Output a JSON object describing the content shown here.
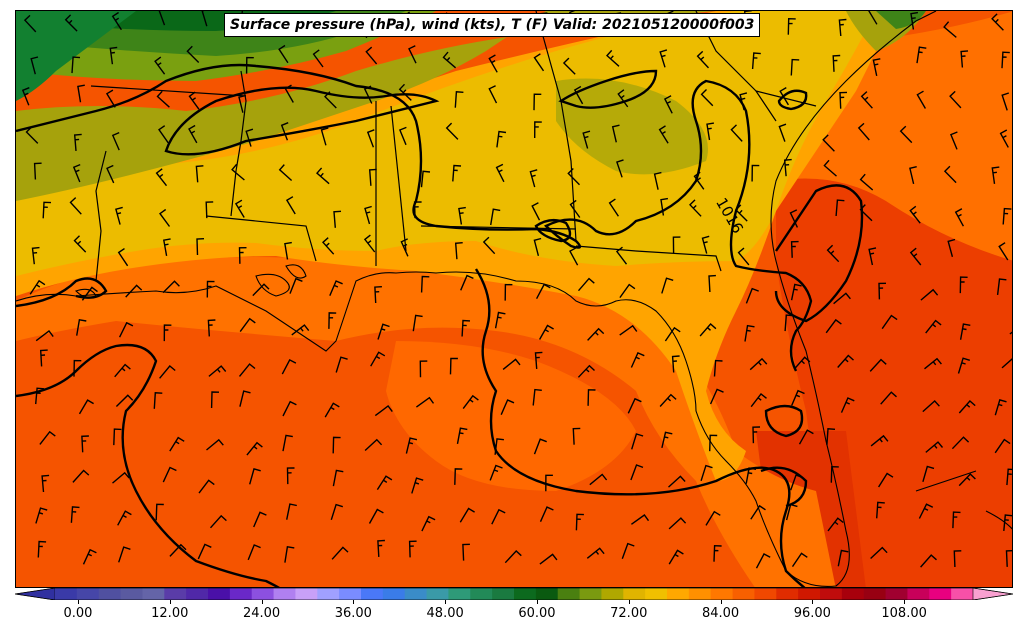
{
  "title": "Surface pressure (hPa), wind (kts), T (F) Valid: 202105120000f003",
  "contour_label": "1016",
  "colorbar": {
    "min": -6,
    "max": 120,
    "step": 3,
    "ticks": [
      "0.00",
      "12.00",
      "24.00",
      "36.00",
      "48.00",
      "60.00",
      "72.00",
      "84.00",
      "96.00",
      "108.00"
    ],
    "tick_values": [
      0,
      12,
      24,
      36,
      48,
      60,
      72,
      84,
      96,
      108
    ],
    "colors": [
      "#3a3aa8",
      "#4646a8",
      "#5050a0",
      "#5a5aa0",
      "#6464a8",
      "#5a3ca8",
      "#5028a8",
      "#4a10a8",
      "#6a28c8",
      "#8c50e0",
      "#b080f0",
      "#c8a0f8",
      "#a0a0ff",
      "#7a8cff",
      "#4a78f8",
      "#3a7ce8",
      "#3a8cc8",
      "#3a9aa8",
      "#2e9a78",
      "#228a58",
      "#1a7a40",
      "#0c6a1e",
      "#0a5a10",
      "#4a8010",
      "#7a9a10",
      "#b0a800",
      "#e0b400",
      "#f0c000",
      "#ffa800",
      "#ff9000",
      "#ff7800",
      "#f86000",
      "#f04800",
      "#e02c00",
      "#d01800",
      "#c00c0c",
      "#a8000c",
      "#980012",
      "#a00030",
      "#c8005a",
      "#e80080",
      "#f850a8"
    ]
  },
  "map_colors": {
    "ocean_deep": "#f45200",
    "ocean": "#f65d00",
    "gulf_coast": "#ff7a00",
    "land_warm": "#ffa600",
    "land_mid": "#ebbc00",
    "olive": "#a6a20c",
    "green_light": "#7aa010",
    "green_mid": "#428218",
    "green_dark": "#0e6a18",
    "green_darkest": "#086018",
    "atlantic_hot": "#ec3e00"
  },
  "wind_barbs": "sparse grid of short barbs (kts) across Gulf of Mexico and southeastern US"
}
